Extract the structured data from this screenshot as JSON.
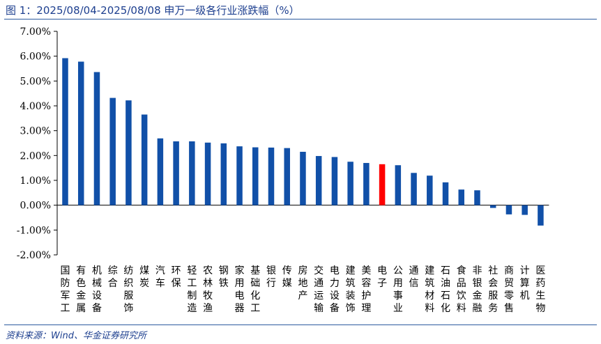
{
  "header": {
    "title": "图 1：2025/08/04-2025/08/08 申万一级各行业涨跌幅（%）"
  },
  "footer": {
    "source": "资料来源：Wind、华金证券研究所"
  },
  "colors": {
    "bar_default": "#1150a8",
    "bar_highlight": "#ff0000",
    "axis": "#000000",
    "title": "#1d3f8f"
  },
  "chart_data": {
    "type": "bar",
    "title": "",
    "xlabel": "",
    "ylabel": "",
    "ylim": [
      -2.0,
      7.0
    ],
    "yticks": [
      7.0,
      6.0,
      5.0,
      4.0,
      3.0,
      2.0,
      1.0,
      0.0,
      -1.0,
      -2.0
    ],
    "ytick_labels": [
      "7.00%",
      "6.00%",
      "5.00%",
      "4.00%",
      "3.00%",
      "2.00%",
      "1.00%",
      "0.00%",
      "-1.00%",
      "-2.00%"
    ],
    "grid": false,
    "legend": "none",
    "highlight": "电子",
    "categories": [
      "国防军工",
      "有色金属",
      "机械设备",
      "综合",
      "纺织服饰",
      "煤炭",
      "汽车",
      "环保",
      "轻工制造",
      "农林牧渔",
      "钢铁",
      "家用电器",
      "基础化工",
      "银行",
      "传媒",
      "房地产",
      "交通运输",
      "电力设备",
      "建筑装饰",
      "美容护理",
      "电子",
      "公用事业",
      "通信",
      "建筑材料",
      "石油石化",
      "食品饮料",
      "非银金融",
      "社会服务",
      "商贸零售",
      "计算机",
      "医药生物"
    ],
    "values": [
      5.92,
      5.78,
      5.36,
      4.32,
      4.22,
      3.65,
      2.69,
      2.57,
      2.57,
      2.52,
      2.49,
      2.37,
      2.33,
      2.32,
      2.3,
      2.15,
      1.98,
      1.94,
      1.75,
      1.7,
      1.65,
      1.61,
      1.3,
      1.19,
      0.92,
      0.63,
      0.6,
      -0.11,
      -0.37,
      -0.39,
      -0.82
    ]
  }
}
